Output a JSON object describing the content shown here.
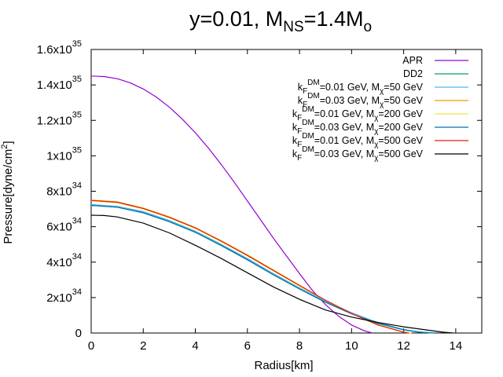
{
  "chart_data": {
    "type": "line",
    "title": {
      "prefix": "y=0.01, M",
      "sub1": "NS",
      "mid": "=1.4M",
      "sub2": "o"
    },
    "xlabel": "Radius[km]",
    "ylabel": {
      "main": "Pressure[dyne/cm",
      "sup": "2",
      "tail": "]"
    },
    "xlim": [
      0,
      15
    ],
    "ylim": [
      0,
      1.6e+35
    ],
    "x_ticks": [
      {
        "value": 0,
        "label": "0"
      },
      {
        "value": 2,
        "label": "2"
      },
      {
        "value": 4,
        "label": "4"
      },
      {
        "value": 6,
        "label": "6"
      },
      {
        "value": 8,
        "label": "8"
      },
      {
        "value": 10,
        "label": "10"
      },
      {
        "value": 12,
        "label": "12"
      },
      {
        "value": 14,
        "label": "14"
      }
    ],
    "y_ticks": [
      {
        "value": 0,
        "mant": "0",
        "exp": ""
      },
      {
        "value": 2e+34,
        "mant": "2x10",
        "exp": "34"
      },
      {
        "value": 4e+34,
        "mant": "4x10",
        "exp": "34"
      },
      {
        "value": 6e+34,
        "mant": "6x10",
        "exp": "34"
      },
      {
        "value": 8e+34,
        "mant": "8x10",
        "exp": "34"
      },
      {
        "value": 1e+35,
        "mant": "1x10",
        "exp": "35"
      },
      {
        "value": 1.2e+35,
        "mant": "1.2x10",
        "exp": "35"
      },
      {
        "value": 1.4e+35,
        "mant": "1.4x10",
        "exp": "35"
      },
      {
        "value": 1.6e+35,
        "mant": "1.6x10",
        "exp": "35"
      }
    ],
    "series": [
      {
        "id": "apr",
        "label": "APR",
        "color": "#9400d3",
        "r": [
          0,
          0.5,
          1,
          1.5,
          2,
          2.5,
          3,
          3.5,
          4,
          4.5,
          5,
          5.5,
          6,
          6.5,
          7,
          7.5,
          8,
          8.5,
          9,
          9.5,
          10,
          10.5,
          10.8
        ],
        "p": [
          1.45e+35,
          1.447e+35,
          1.435e+35,
          1.412e+35,
          1.377e+35,
          1.332e+35,
          1.275e+35,
          1.207e+35,
          1.13e+35,
          1.044e+35,
          9.5e+34,
          8.5e+34,
          7.45e+34,
          6.4e+34,
          5.35e+34,
          4.35e+34,
          3.35e+34,
          2.4e+34,
          1.6e+34,
          9.5e+33,
          4.5e+33,
          1.2e+33,
          0
        ]
      },
      {
        "id": "dd2",
        "label": "DD2",
        "color": "#009e73",
        "r": [
          0,
          1,
          2,
          3,
          4,
          5,
          6,
          7,
          8,
          9,
          10,
          11,
          12,
          12.6,
          13.2
        ],
        "p": [
          7.2e+34,
          7.1e+34,
          6.8e+34,
          6.3e+34,
          5.7e+34,
          4.95e+34,
          4.15e+34,
          3.3e+34,
          2.5e+34,
          1.75e+34,
          1.1e+34,
          5.5e+33,
          1.8e+33,
          5e+32,
          0
        ]
      },
      {
        "id": "k001-m50",
        "label_pre": "k",
        "label_sub": "F",
        "label_sup": "DM",
        "label_mid": "=0.01 GeV, M",
        "label_sub2": "χ",
        "label_post": "=50 GeV",
        "color": "#56b4e9",
        "r": [
          0,
          1,
          2,
          3,
          4,
          5,
          6,
          7,
          8,
          9,
          10,
          11,
          12,
          12.6,
          13.1
        ],
        "p": [
          7.25e+34,
          7.15e+34,
          6.85e+34,
          6.35e+34,
          5.75e+34,
          5e+34,
          4.2e+34,
          3.35e+34,
          2.55e+34,
          1.8e+34,
          1.15e+34,
          6e+33,
          2e+33,
          6e+32,
          0
        ]
      },
      {
        "id": "k003-m50",
        "label_pre": "k",
        "label_sub": "F",
        "label_sup": "DM",
        "label_mid": "=0.03 GeV, M",
        "label_sub2": "χ",
        "label_post": "=50 GeV",
        "color": "#e69f00",
        "r": [
          0,
          1,
          2,
          3,
          4,
          5,
          6,
          7,
          8,
          9,
          10,
          11,
          12,
          12.2
        ],
        "p": [
          7.5e+34,
          7.4e+34,
          7.05e+34,
          6.55e+34,
          5.95e+34,
          5.2e+34,
          4.4e+34,
          3.55e+34,
          2.7e+34,
          1.85e+34,
          1.1e+34,
          4.5e+33,
          5e+32,
          0
        ]
      },
      {
        "id": "k001-m200",
        "label_pre": "k",
        "label_sub": "F",
        "label_sup": "DM",
        "label_mid": "=0.01 GeV, M",
        "label_sub2": "χ",
        "label_post": "=200 GeV",
        "color": "#f0e442",
        "r": [
          0,
          1,
          2,
          3,
          4,
          5,
          6,
          7,
          8,
          9,
          10,
          11,
          12,
          12.3
        ],
        "p": [
          7.45e+34,
          7.35e+34,
          7e+34,
          6.5e+34,
          5.9e+34,
          5.15e+34,
          4.35e+34,
          3.5e+34,
          2.65e+34,
          1.85e+34,
          1.1e+34,
          4.8e+33,
          6e+32,
          0
        ]
      },
      {
        "id": "k003-m200",
        "label_pre": "k",
        "label_sub": "F",
        "label_sup": "DM",
        "label_mid": "=0.03 GeV, M",
        "label_sub2": "χ",
        "label_post": "=200 GeV",
        "color": "#0072b2",
        "r": [
          0,
          1,
          2,
          3,
          4,
          5,
          6,
          7,
          8,
          9,
          10,
          11,
          12,
          12.6,
          13.2
        ],
        "p": [
          7.2e+34,
          7.1e+34,
          6.78e+34,
          6.28e+34,
          5.68e+34,
          4.93e+34,
          4.13e+34,
          3.28e+34,
          2.48e+34,
          1.73e+34,
          1.08e+34,
          5.4e+33,
          1.8e+33,
          5e+32,
          0
        ]
      },
      {
        "id": "k001-m500",
        "label_pre": "k",
        "label_sub": "F",
        "label_sup": "DM",
        "label_mid": "=0.01 GeV, M",
        "label_sub2": "χ",
        "label_post": "=500 GeV",
        "color": "#e51e10",
        "r": [
          0,
          1,
          2,
          3,
          4,
          5,
          6,
          7,
          8,
          9,
          10,
          11,
          12,
          12.2
        ],
        "p": [
          7.48e+34,
          7.38e+34,
          7.03e+34,
          6.53e+34,
          5.93e+34,
          5.18e+34,
          4.38e+34,
          3.53e+34,
          2.68e+34,
          1.85e+34,
          1.1e+34,
          4.6e+33,
          5e+32,
          0
        ]
      },
      {
        "id": "k003-m500",
        "label_pre": "k",
        "label_sub": "F",
        "label_sup": "DM",
        "label_mid": "=0.03 GeV, M",
        "label_sub2": "χ",
        "label_post": "=500 GeV",
        "color": "#000000",
        "r": [
          0,
          0.5,
          1,
          2,
          3,
          4,
          5,
          6,
          7,
          8,
          9,
          10,
          11,
          12,
          13,
          13.5,
          13.9
        ],
        "p": [
          6.65e+34,
          6.63e+34,
          6.55e+34,
          6.2e+34,
          5.65e+34,
          4.95e+34,
          4.2e+34,
          3.4e+34,
          2.6e+34,
          1.9e+34,
          1.3e+34,
          9e+33,
          6e+33,
          3.5e+33,
          1.5e+33,
          5e+32,
          0
        ]
      }
    ],
    "legend": "top-right"
  }
}
